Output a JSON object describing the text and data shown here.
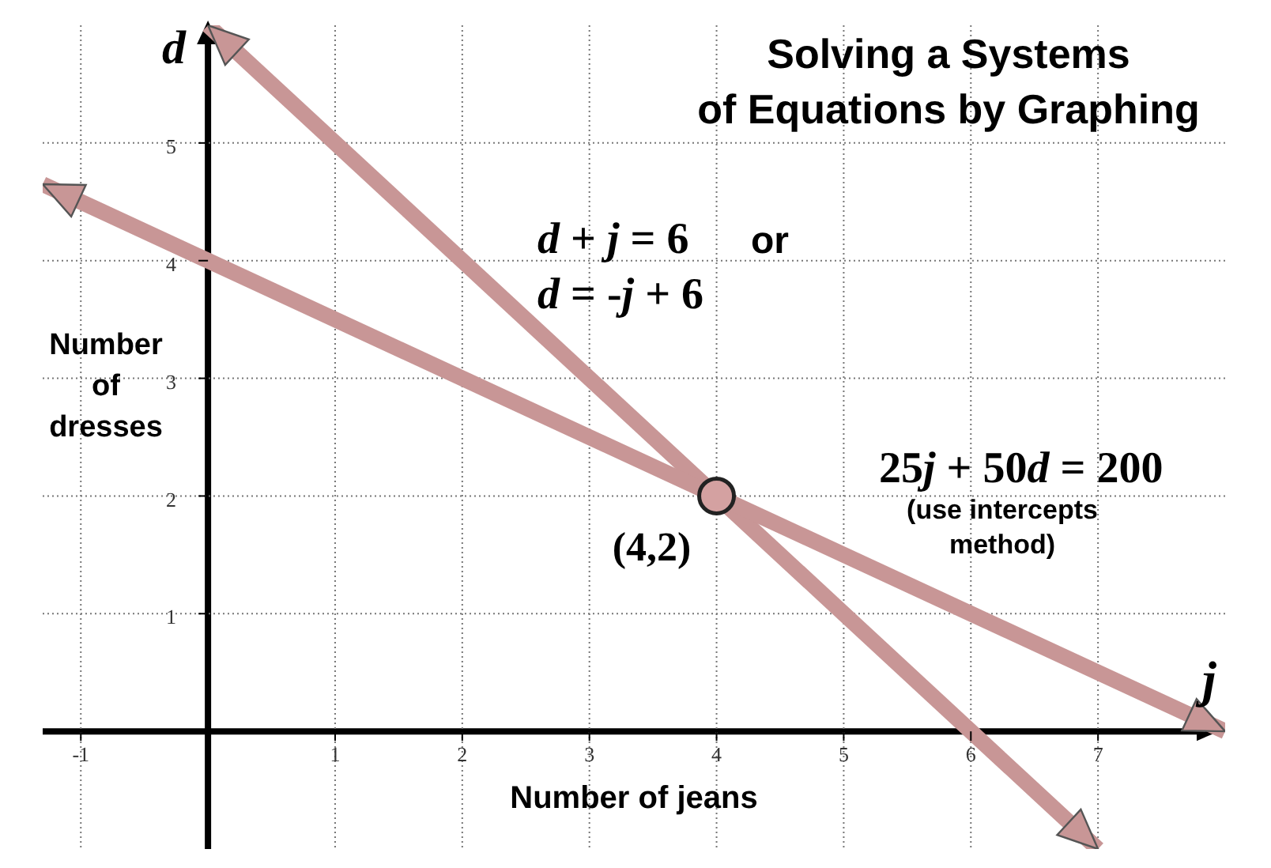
{
  "chart_data": {
    "type": "line",
    "title": "Solving a Systems\nof Equations by Graphing",
    "xlabel": "Number of jeans",
    "ylabel": "Number of dresses",
    "series": [
      {
        "type": "line",
        "color": "#c89696",
        "x": [
          0,
          7
        ],
        "values": [
          6,
          -1
        ]
      },
      {
        "type": "line",
        "color": "#c89696",
        "x": [
          -1.3,
          8
        ],
        "values": [
          4.65,
          0
        ]
      },
      {
        "type": "scatter",
        "color": "#d4a1a1",
        "x": [
          4
        ],
        "values": [
          2
        ],
        "marker": "circle"
      }
    ],
    "xlim": [
      -1.3,
      8
    ],
    "ylim": [
      -1,
      6
    ],
    "xticks": [
      -1,
      1,
      2,
      3,
      4,
      5,
      6,
      7
    ],
    "yticks": [
      1,
      2,
      3,
      4,
      5
    ],
    "grid": true,
    "annotations": [
      "d + j = 6",
      "or",
      "d = -j + 6",
      "25j + 50d = 200",
      "(use intercepts method)",
      {
        "text": "(4,2)",
        "x": 4,
        "y": 2
      },
      "j",
      "d"
    ]
  }
}
